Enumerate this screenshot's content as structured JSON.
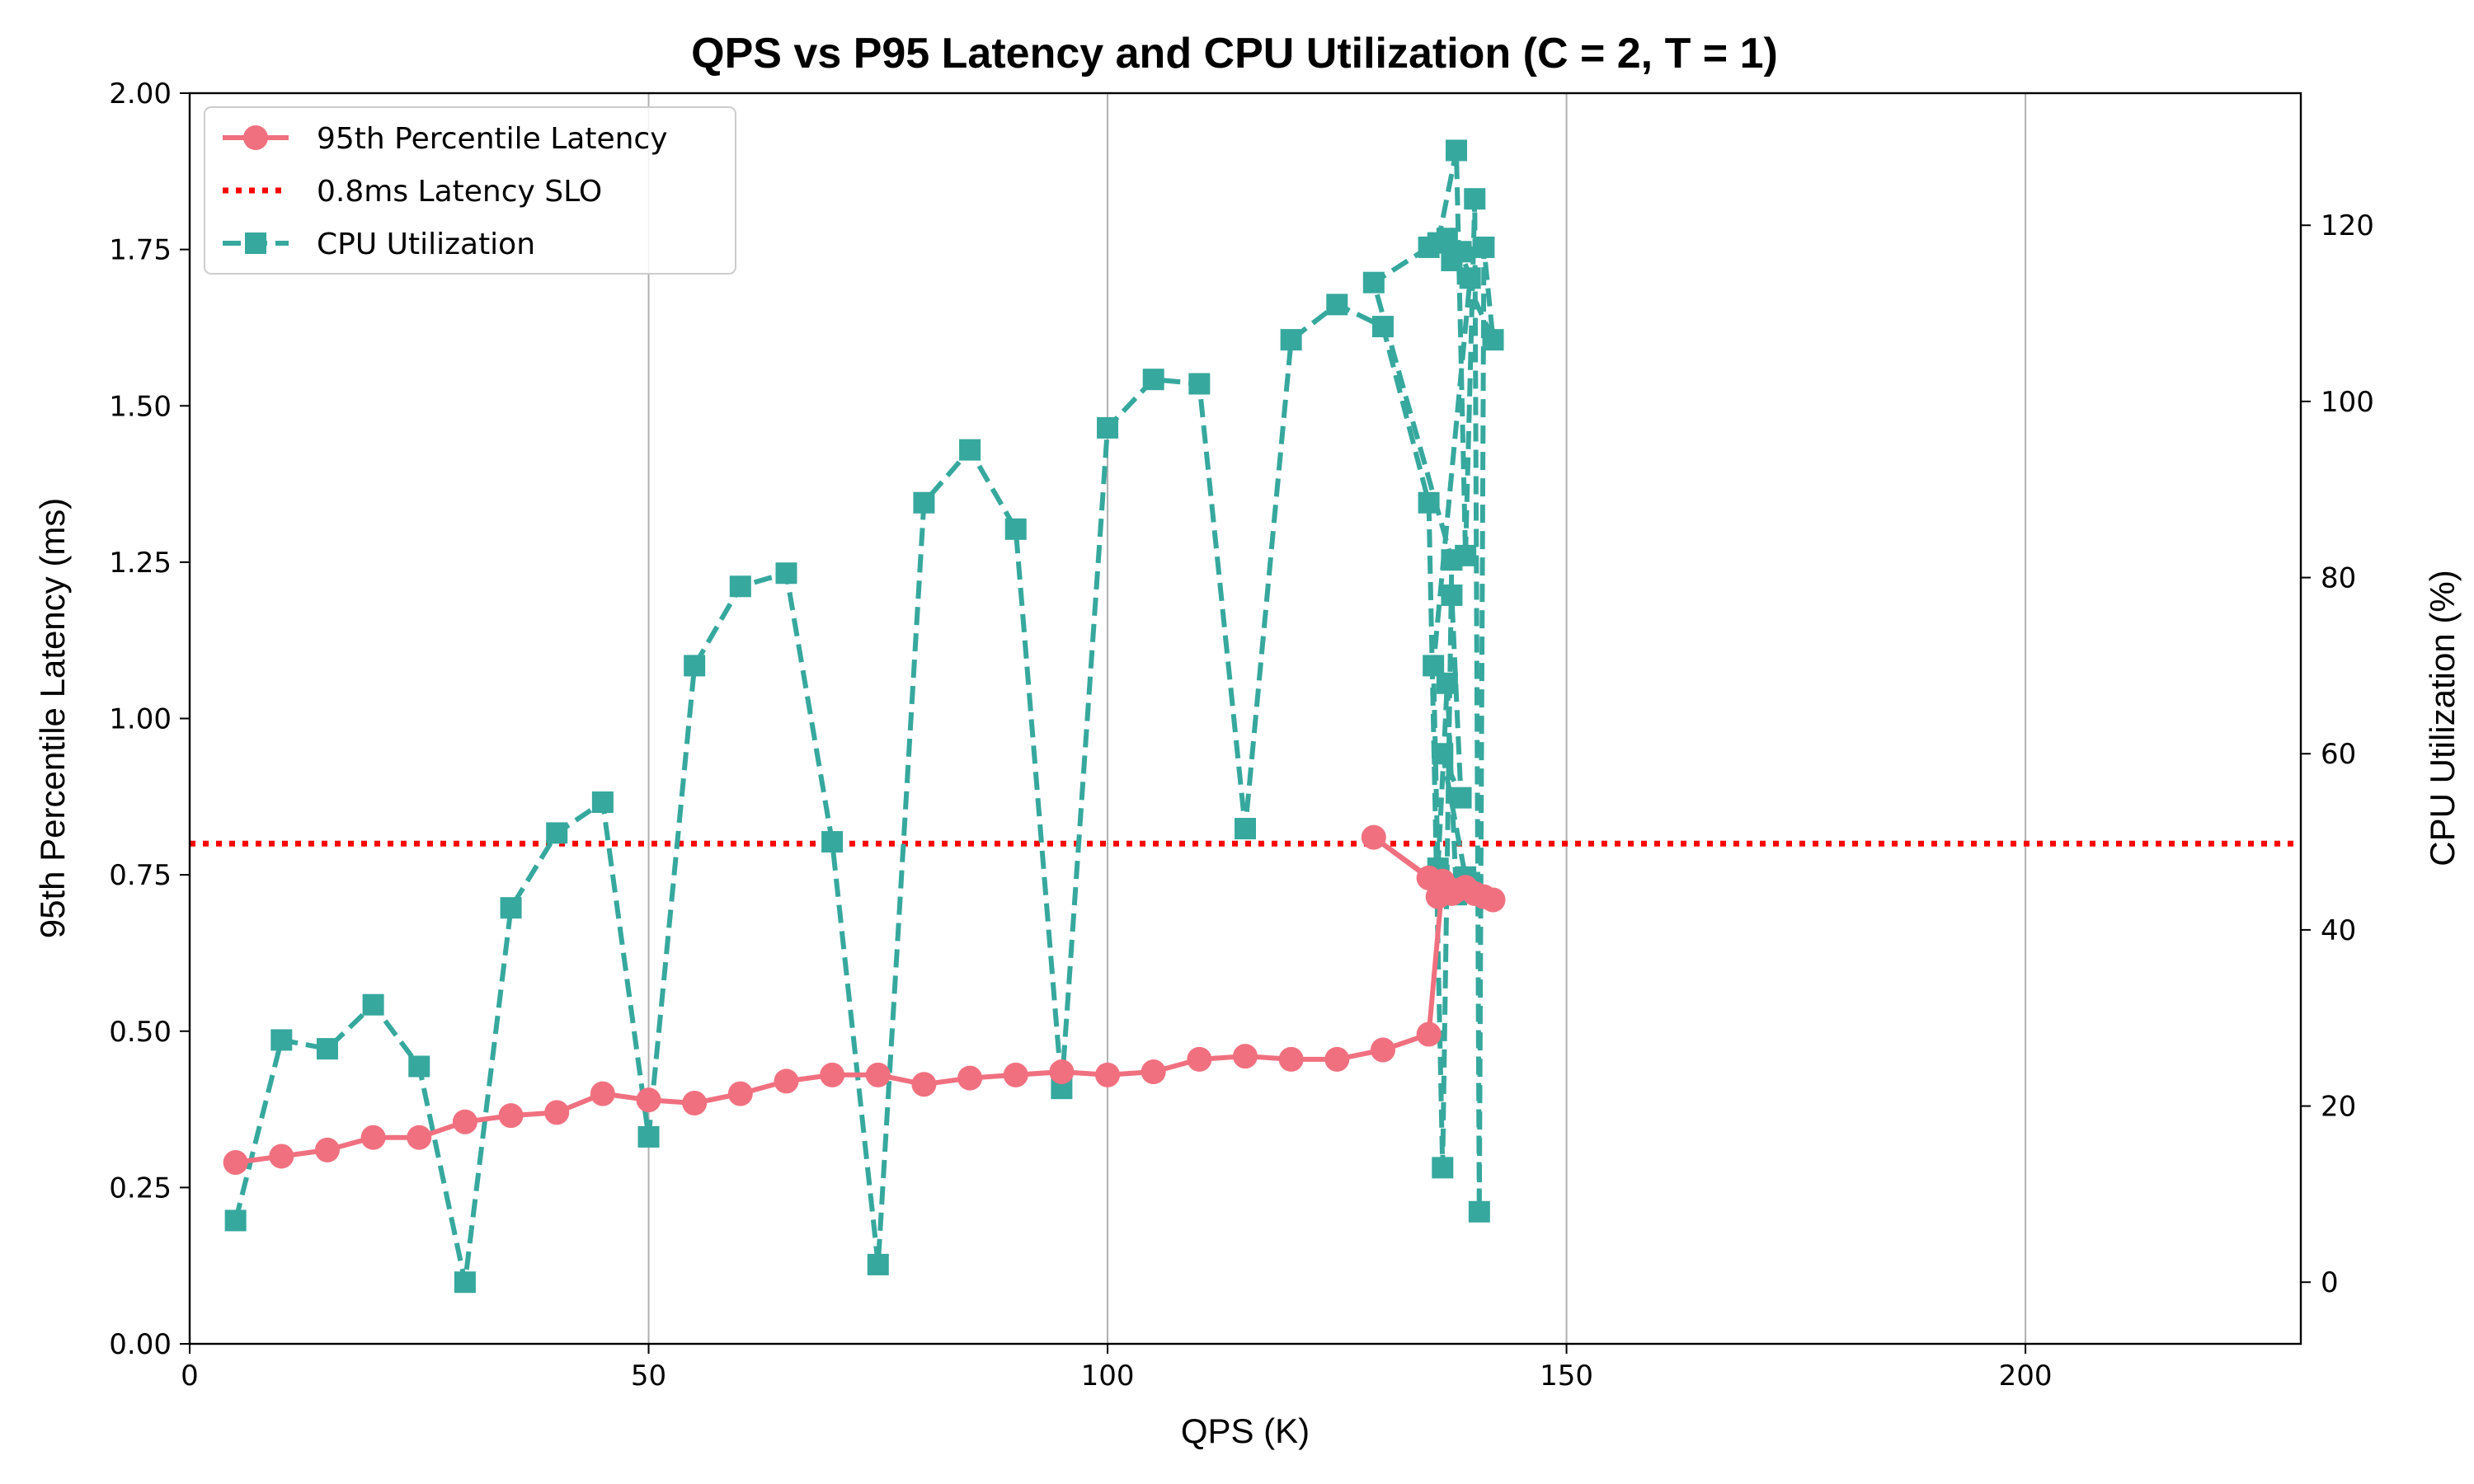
{
  "chart_data": {
    "type": "line",
    "title": "QPS vs P95 Latency and CPU Utilization (C = 2, T = 1)",
    "xlabel": "QPS (K)",
    "ylabel": "95th Percentile Latency (ms)",
    "y2label": "CPU Utilization (%)",
    "xlim": [
      0,
      230
    ],
    "ylim": [
      0,
      2.0
    ],
    "y2lim": [
      -7,
      135
    ],
    "xticks": [
      0,
      50,
      100,
      150,
      200
    ],
    "xtick_labels": [
      "0",
      "50",
      "100",
      "150",
      "200"
    ],
    "yticks": [
      0,
      0.25,
      0.5,
      0.75,
      1.0,
      1.25,
      1.5,
      1.75,
      2.0
    ],
    "ytick_labels": [
      "0.00",
      "0.25",
      "0.50",
      "0.75",
      "1.00",
      "1.25",
      "1.50",
      "1.75",
      "2.00"
    ],
    "y2ticks": [
      0,
      20,
      40,
      60,
      80,
      100,
      120
    ],
    "y2tick_labels": [
      "0",
      "20",
      "40",
      "60",
      "80",
      "100",
      "120"
    ],
    "grid": "vertical",
    "legend_position": "top-left",
    "colors": {
      "latency": "#f0707f",
      "slo": "#ff0000",
      "cpu": "#36a89e"
    },
    "series": [
      {
        "name": "95th Percentile Latency",
        "axis": "left",
        "style": "solid-circle",
        "points": [
          [
            5,
            0.29
          ],
          [
            10,
            0.3
          ],
          [
            15,
            0.31
          ],
          [
            20,
            0.33
          ],
          [
            25,
            0.33
          ],
          [
            30,
            0.355
          ],
          [
            35,
            0.365
          ],
          [
            40,
            0.37
          ],
          [
            45,
            0.4
          ],
          [
            50,
            0.39
          ],
          [
            55,
            0.385
          ],
          [
            60,
            0.4
          ],
          [
            65,
            0.42
          ],
          [
            70,
            0.43
          ],
          [
            75,
            0.43
          ],
          [
            80,
            0.415
          ],
          [
            85,
            0.425
          ],
          [
            90,
            0.43
          ],
          [
            95,
            0.435
          ],
          [
            100,
            0.43
          ],
          [
            105,
            0.435
          ],
          [
            110,
            0.455
          ],
          [
            115,
            0.46
          ],
          [
            120,
            0.455
          ],
          [
            125,
            0.455
          ],
          [
            130,
            0.47
          ],
          [
            135,
            0.495
          ],
          [
            136.5,
            0.74
          ],
          [
            137.5,
            0.72
          ],
          [
            129,
            0.81
          ],
          [
            135,
            0.745
          ],
          [
            136,
            0.715
          ],
          [
            138,
            0.725
          ],
          [
            139,
            0.73
          ],
          [
            140,
            0.72
          ],
          [
            141,
            0.715
          ],
          [
            142,
            0.71
          ]
        ]
      },
      {
        "name": "0.8ms Latency SLO",
        "axis": "left",
        "style": "dotted-hline",
        "value": 0.8
      },
      {
        "name": "CPU Utilization",
        "axis": "right",
        "style": "dashed-square",
        "points": [
          [
            5,
            7
          ],
          [
            10,
            27.5
          ],
          [
            15,
            26.5
          ],
          [
            20,
            31.5
          ],
          [
            25,
            24.5
          ],
          [
            30,
            0
          ],
          [
            35,
            42.5
          ],
          [
            40,
            51
          ],
          [
            45,
            54.5
          ],
          [
            50,
            16.5
          ],
          [
            55,
            70
          ],
          [
            60,
            79
          ],
          [
            65,
            80.5
          ],
          [
            70,
            50
          ],
          [
            75,
            2
          ],
          [
            80,
            88.5
          ],
          [
            85,
            94.5
          ],
          [
            90,
            85.5
          ],
          [
            95,
            22
          ],
          [
            100,
            97
          ],
          [
            105,
            102.5
          ],
          [
            110,
            102
          ],
          [
            115,
            51.5
          ],
          [
            120,
            107
          ],
          [
            125,
            111
          ],
          [
            130,
            108.5
          ],
          [
            135,
            88.5
          ],
          [
            136.5,
            13
          ],
          [
            137.5,
            82
          ],
          [
            129,
            113.5
          ],
          [
            135,
            117.5
          ],
          [
            136,
            118
          ],
          [
            138,
            128.5
          ],
          [
            139,
            82.5
          ],
          [
            140,
            123
          ],
          [
            140.5,
            8
          ],
          [
            141,
            117.5
          ],
          [
            142,
            107
          ],
          [
            137,
            118.5
          ],
          [
            137.5,
            116
          ],
          [
            138.5,
            117
          ],
          [
            139.5,
            114
          ],
          [
            135.5,
            70
          ],
          [
            136,
            47
          ],
          [
            137,
            68
          ],
          [
            138,
            44
          ],
          [
            139,
            46
          ],
          [
            136.5,
            60
          ],
          [
            138.5,
            55
          ],
          [
            137.5,
            78
          ]
        ]
      }
    ]
  }
}
